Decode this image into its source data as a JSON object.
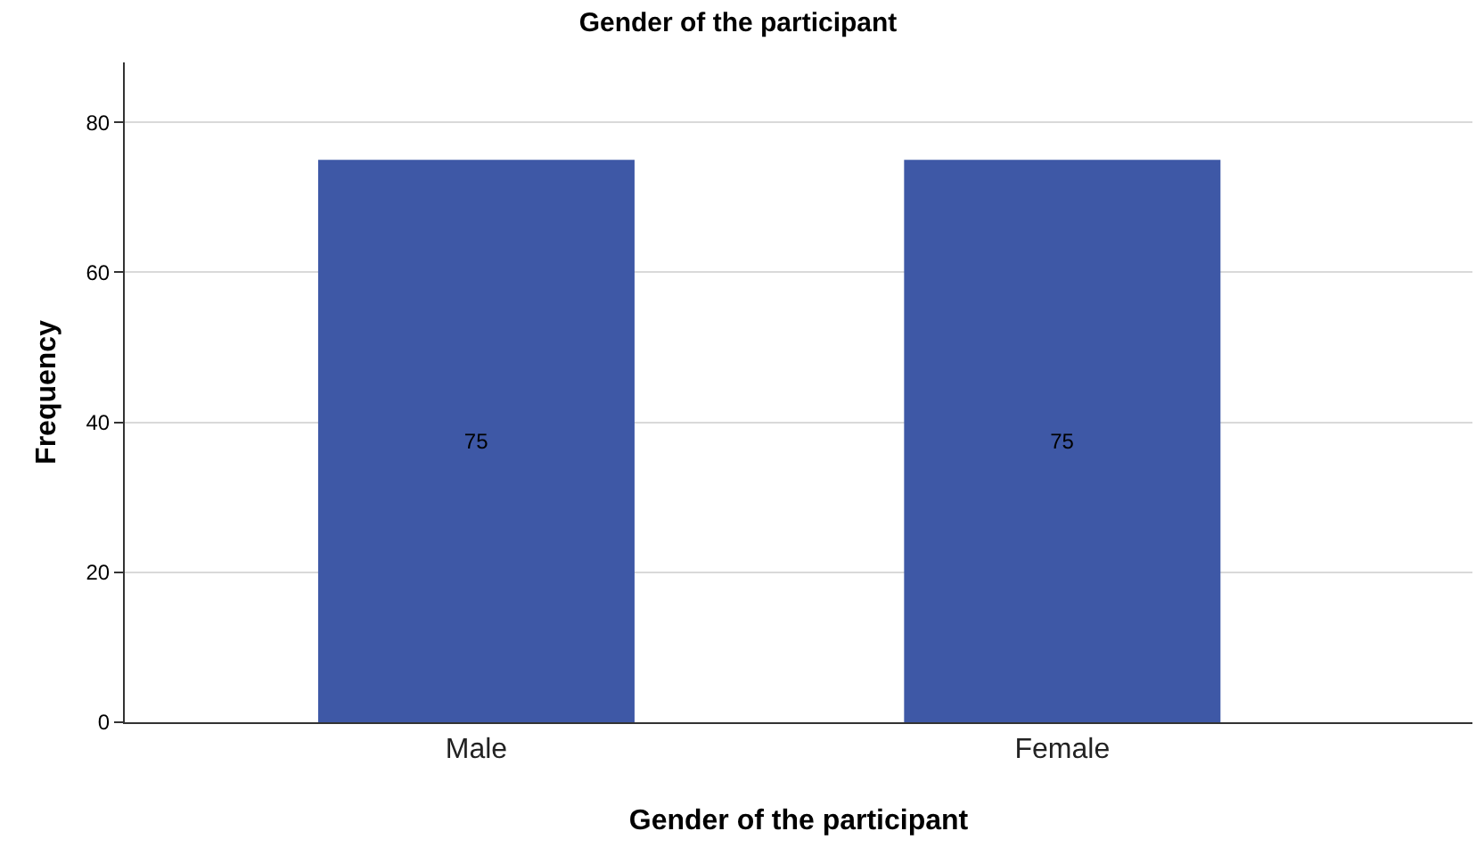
{
  "chart_data": {
    "type": "bar",
    "title": "Gender of the participant",
    "xlabel": "Gender of the participant",
    "ylabel": "Frequency",
    "categories": [
      "Male",
      "Female"
    ],
    "series": [
      {
        "color": "#3e58a6",
        "values": [
          75,
          75
        ]
      }
    ],
    "ylim": [
      0,
      88
    ],
    "yticks": [
      0,
      20,
      40,
      60,
      80
    ],
    "grid": "y",
    "data_labels": true
  }
}
